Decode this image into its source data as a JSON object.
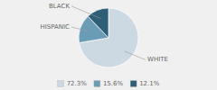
{
  "chart_data": {
    "type": "pie",
    "categories": [
      "WHITE",
      "HISPANIC",
      "BLACK"
    ],
    "values": [
      72.3,
      15.6,
      12.1
    ],
    "value_labels": [
      "72.3%",
      "15.6%",
      "12.1%"
    ],
    "colors": [
      "#ccd9e3",
      "#6b9cb5",
      "#2e5f74"
    ],
    "legend": "bottom"
  }
}
